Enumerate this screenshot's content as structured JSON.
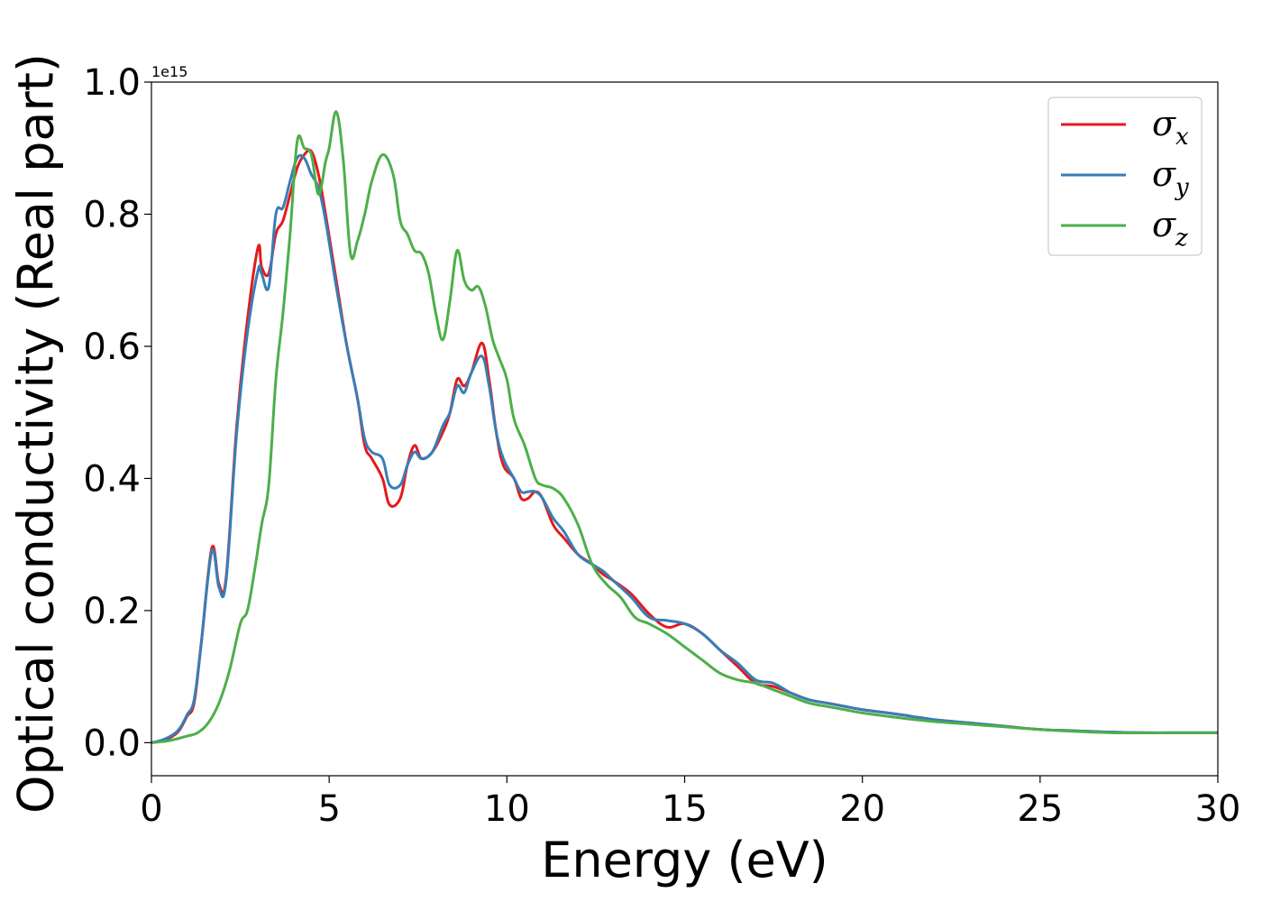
{
  "chart_data": {
    "type": "line",
    "title": "",
    "xlabel": "Energy (eV)",
    "ylabel": "Optical conductivity (Real part)",
    "y_offset_text": "1e15",
    "xlim": [
      0,
      30
    ],
    "ylim": [
      -0.05,
      1.0
    ],
    "xticks": [
      0,
      5,
      10,
      15,
      20,
      25,
      30
    ],
    "yticks": [
      0.0,
      0.2,
      0.4,
      0.6,
      0.8,
      1.0
    ],
    "xtick_labels": [
      "0",
      "5",
      "10",
      "15",
      "20",
      "25",
      "30"
    ],
    "ytick_labels": [
      "0.0",
      "0.2",
      "0.4",
      "0.6",
      "0.8",
      "1.0"
    ],
    "grid": false,
    "legend_position": "top-right",
    "series": [
      {
        "name": "σx",
        "legend_symbol": "σ",
        "legend_subscript": "x",
        "color": "#e41a1c",
        "x": [
          0,
          0.3,
          0.6,
          0.8,
          1.0,
          1.2,
          1.4,
          1.7,
          1.9,
          2.1,
          2.4,
          2.7,
          3.0,
          3.1,
          3.3,
          3.5,
          3.7,
          3.9,
          4.1,
          4.3,
          4.5,
          4.7,
          4.9,
          5.2,
          5.5,
          5.8,
          6.0,
          6.2,
          6.5,
          6.7,
          7.0,
          7.2,
          7.4,
          7.6,
          7.9,
          8.2,
          8.4,
          8.6,
          8.8,
          9.0,
          9.3,
          9.5,
          9.7,
          9.9,
          10.2,
          10.4,
          10.6,
          10.8,
          11.0,
          11.3,
          11.6,
          12.0,
          12.4,
          12.7,
          13.0,
          13.5,
          14.0,
          14.5,
          15.0,
          15.5,
          16.0,
          16.5,
          17.0,
          17.5,
          18.0,
          18.5,
          19.0,
          19.5,
          20.0,
          21.0,
          22.0,
          23.0,
          24.0,
          25.0,
          26.0,
          27.0,
          28.0,
          29.0,
          30.0
        ],
        "y": [
          0.0,
          0.003,
          0.01,
          0.02,
          0.04,
          0.06,
          0.15,
          0.295,
          0.24,
          0.25,
          0.48,
          0.64,
          0.75,
          0.72,
          0.71,
          0.77,
          0.79,
          0.83,
          0.87,
          0.89,
          0.895,
          0.86,
          0.8,
          0.7,
          0.6,
          0.52,
          0.45,
          0.43,
          0.4,
          0.36,
          0.37,
          0.42,
          0.45,
          0.43,
          0.44,
          0.47,
          0.5,
          0.55,
          0.54,
          0.56,
          0.605,
          0.55,
          0.47,
          0.42,
          0.4,
          0.37,
          0.37,
          0.38,
          0.37,
          0.33,
          0.31,
          0.285,
          0.27,
          0.255,
          0.245,
          0.225,
          0.195,
          0.175,
          0.18,
          0.165,
          0.14,
          0.115,
          0.09,
          0.085,
          0.075,
          0.065,
          0.06,
          0.055,
          0.05,
          0.043,
          0.035,
          0.03,
          0.025,
          0.02,
          0.018,
          0.016,
          0.015,
          0.015,
          0.015
        ]
      },
      {
        "name": "σy",
        "legend_symbol": "σ",
        "legend_subscript": "y",
        "color": "#377eb8",
        "x": [
          0,
          0.3,
          0.6,
          0.8,
          1.0,
          1.2,
          1.4,
          1.7,
          1.9,
          2.1,
          2.4,
          2.7,
          3.0,
          3.1,
          3.3,
          3.5,
          3.7,
          3.9,
          4.1,
          4.3,
          4.5,
          4.7,
          4.9,
          5.2,
          5.5,
          5.8,
          6.0,
          6.2,
          6.5,
          6.7,
          7.0,
          7.2,
          7.4,
          7.6,
          7.9,
          8.2,
          8.4,
          8.6,
          8.8,
          9.0,
          9.3,
          9.5,
          9.7,
          9.9,
          10.2,
          10.4,
          10.6,
          10.8,
          11.0,
          11.3,
          11.6,
          12.0,
          12.4,
          12.7,
          13.0,
          13.5,
          14.0,
          14.5,
          15.0,
          15.5,
          16.0,
          16.5,
          17.0,
          17.5,
          18.0,
          18.5,
          19.0,
          19.5,
          20.0,
          21.0,
          22.0,
          23.0,
          24.0,
          25.0,
          26.0,
          27.0,
          28.0,
          29.0,
          30.0
        ],
        "y": [
          0.0,
          0.004,
          0.012,
          0.022,
          0.042,
          0.065,
          0.15,
          0.29,
          0.235,
          0.245,
          0.47,
          0.62,
          0.715,
          0.71,
          0.69,
          0.8,
          0.81,
          0.85,
          0.885,
          0.885,
          0.86,
          0.84,
          0.79,
          0.69,
          0.6,
          0.52,
          0.46,
          0.44,
          0.43,
          0.39,
          0.39,
          0.42,
          0.44,
          0.43,
          0.44,
          0.48,
          0.5,
          0.54,
          0.53,
          0.56,
          0.585,
          0.54,
          0.47,
          0.43,
          0.4,
          0.38,
          0.38,
          0.38,
          0.37,
          0.34,
          0.32,
          0.285,
          0.27,
          0.26,
          0.245,
          0.22,
          0.19,
          0.185,
          0.18,
          0.165,
          0.14,
          0.12,
          0.095,
          0.09,
          0.075,
          0.065,
          0.06,
          0.055,
          0.05,
          0.043,
          0.035,
          0.03,
          0.025,
          0.02,
          0.018,
          0.016,
          0.015,
          0.015,
          0.015
        ]
      },
      {
        "name": "σz",
        "legend_symbol": "σ",
        "legend_subscript": "z",
        "color": "#4daf4a",
        "x": [
          0,
          0.5,
          1.0,
          1.3,
          1.6,
          1.9,
          2.2,
          2.5,
          2.7,
          2.9,
          3.1,
          3.3,
          3.5,
          3.7,
          3.9,
          4.1,
          4.3,
          4.5,
          4.7,
          4.9,
          5.0,
          5.2,
          5.4,
          5.6,
          5.8,
          6.0,
          6.2,
          6.5,
          6.8,
          7.0,
          7.2,
          7.4,
          7.6,
          7.8,
          8.0,
          8.2,
          8.4,
          8.6,
          8.8,
          9.0,
          9.2,
          9.4,
          9.6,
          9.8,
          10.0,
          10.2,
          10.5,
          10.8,
          11.0,
          11.3,
          11.6,
          12.0,
          12.4,
          12.8,
          13.2,
          13.6,
          14.0,
          14.5,
          15.0,
          15.5,
          16.0,
          16.5,
          17.0,
          17.5,
          18.0,
          18.5,
          19.0,
          19.5,
          20.0,
          21.0,
          22.0,
          23.0,
          24.0,
          25.0,
          26.0,
          27.0,
          28.0,
          29.0,
          30.0
        ],
        "y": [
          0.0,
          0.003,
          0.01,
          0.015,
          0.03,
          0.06,
          0.11,
          0.18,
          0.2,
          0.26,
          0.33,
          0.39,
          0.55,
          0.65,
          0.77,
          0.91,
          0.9,
          0.89,
          0.83,
          0.88,
          0.9,
          0.955,
          0.88,
          0.74,
          0.76,
          0.8,
          0.85,
          0.89,
          0.86,
          0.79,
          0.77,
          0.745,
          0.74,
          0.71,
          0.65,
          0.61,
          0.67,
          0.745,
          0.7,
          0.685,
          0.69,
          0.66,
          0.61,
          0.58,
          0.55,
          0.49,
          0.45,
          0.4,
          0.39,
          0.385,
          0.37,
          0.33,
          0.27,
          0.24,
          0.22,
          0.19,
          0.18,
          0.165,
          0.145,
          0.125,
          0.105,
          0.095,
          0.09,
          0.08,
          0.07,
          0.06,
          0.055,
          0.05,
          0.045,
          0.038,
          0.032,
          0.028,
          0.024,
          0.02,
          0.017,
          0.015,
          0.015,
          0.015,
          0.015
        ]
      }
    ]
  }
}
